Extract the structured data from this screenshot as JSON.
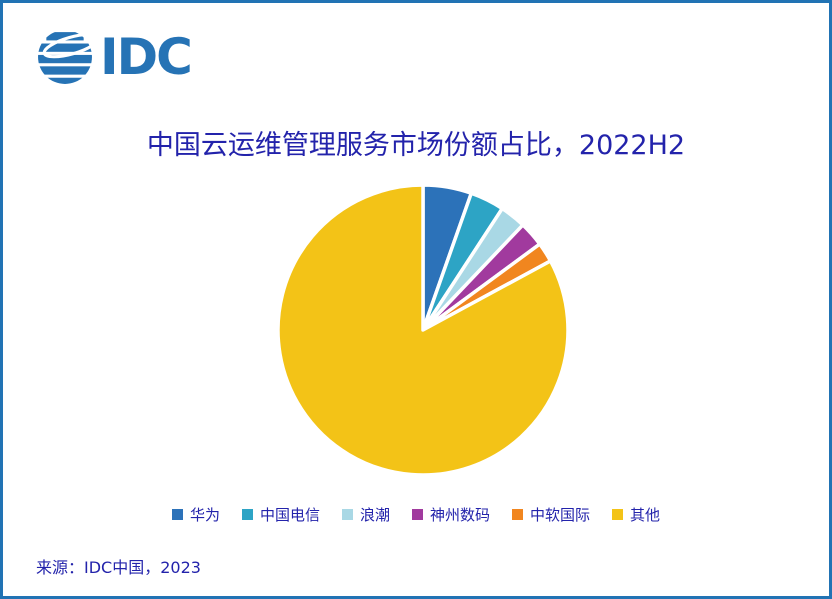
{
  "window": {
    "background": "#ffffff",
    "border_color": "#2173B4"
  },
  "logo": {
    "text": "IDC",
    "color": "#2673B5"
  },
  "title": {
    "text": "中国云运维管理服务市场份额占比，2022H2",
    "color": "#2323AB"
  },
  "chart_data": {
    "type": "pie",
    "title": "中国云运维管理服务市场份额占比，2022H2",
    "categories": [
      "华为",
      "中国电信",
      "浪潮",
      "神州数码",
      "中软国际",
      "其他"
    ],
    "values": [
      5.4,
      3.8,
      2.9,
      2.8,
      2.2,
      82.9
    ],
    "unit": "percent_market_share",
    "colors": [
      "#2C72B9",
      "#2DA4C5",
      "#A9D8E5",
      "#A13A9E",
      "#F1861F",
      "#F3C317"
    ],
    "start_angle_deg": 0,
    "direction": "clockwise",
    "legend_position": "bottom",
    "slice_gap_color": "#ffffff",
    "data_labels": "none"
  },
  "source": {
    "text": "来源：IDC中国，2023"
  }
}
